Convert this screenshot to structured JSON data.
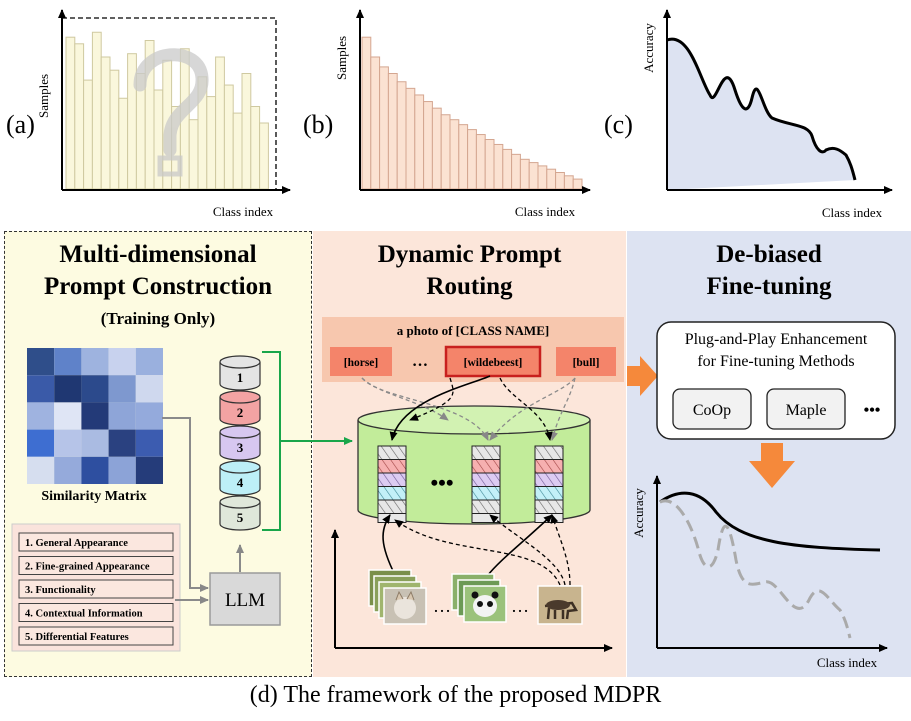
{
  "panels": {
    "a": {
      "letter": "(a)",
      "ylabel": "Samples",
      "xlabel": "Class index",
      "bars": [
        0.92,
        0.88,
        0.66,
        0.95,
        0.8,
        0.72,
        0.55,
        0.82,
        0.7,
        0.9,
        0.6,
        0.78,
        0.5,
        0.85,
        0.42,
        0.68,
        0.56,
        0.8,
        0.63,
        0.46,
        0.7,
        0.5,
        0.4
      ]
    },
    "b": {
      "letter": "(b)",
      "ylabel": "Samples",
      "xlabel": "Class index",
      "bars": [
        0.92,
        0.8,
        0.74,
        0.7,
        0.65,
        0.61,
        0.57,
        0.53,
        0.49,
        0.45,
        0.42,
        0.39,
        0.36,
        0.33,
        0.3,
        0.27,
        0.24,
        0.21,
        0.18,
        0.16,
        0.14,
        0.12,
        0.1,
        0.08,
        0.06
      ]
    },
    "c": {
      "letter": "(c)",
      "ylabel": "Accuracy",
      "xlabel": "Class index"
    }
  },
  "section1": {
    "title_line1": "Multi-dimensional",
    "title_line2": "Prompt Construction",
    "subtitle": "(Training Only)",
    "matrix_label": "Similarity Matrix",
    "matrix_colors": [
      [
        "#2f4e8a",
        "#5f82c9",
        "#9eb3df",
        "#c8d2ee",
        "#9ab0de"
      ],
      [
        "#3a5aa8",
        "#1f3772",
        "#2c4a8c",
        "#7e98cf",
        "#cfd8ee"
      ],
      [
        "#9fb3e0",
        "#dfe5f5",
        "#233a78",
        "#8ea5d8",
        "#94aadc"
      ],
      [
        "#3e6ed1",
        "#b6c4e8",
        "#aabbe2",
        "#2a4180",
        "#3c5cb0"
      ],
      [
        "#d6deef",
        "#95aadb",
        "#2e4fa0",
        "#8ca3d7",
        "#253c7a"
      ]
    ],
    "db_labels": [
      "1",
      "2",
      "3",
      "4",
      "5"
    ],
    "db_colors": [
      "#e4e4e4",
      "#f3a3a3",
      "#d7c7f0",
      "#bdeff7",
      "#dfe7da"
    ],
    "features": [
      "1. General Appearance",
      "2. Fine-grained Appearance",
      "3. Functionality",
      "4. Contextual Information",
      "5. Differential Features"
    ],
    "llm_label": "LLM"
  },
  "section2": {
    "title_line1": "Dynamic Prompt",
    "title_line2": "Routing",
    "template": "a photo of [CLASS NAME]",
    "classes": [
      "[horse]",
      "…",
      "[wildebeest]",
      "[bull]"
    ],
    "ellipsis": "•••",
    "ellipsis_images": "…"
  },
  "section3": {
    "title_line1": "De-biased",
    "title_line2": "Fine-tuning",
    "box_line1": "Plug-and-Play Enhancement",
    "box_line2": "for Fine-tuning Methods",
    "methods": [
      "CoOp",
      "Maple"
    ],
    "more": "•••",
    "ylabel": "Accuracy",
    "xlabel": "Class index"
  },
  "caption": "(d) The framework of the proposed MDPR",
  "colors": {
    "bg_section1": "#fdfbe1",
    "bg_section2": "#fce6da",
    "bg_section3": "#dde3f2",
    "bar_a_fill": "#faf7dc",
    "bar_b_fill": "#fbe2d2",
    "area_c_fill": "#dde3f2",
    "cylinder_green": "#c2ec9a",
    "arrow_orange": "#f5893b",
    "bracket_green": "#19a64a",
    "prompt_red": "#f4846a",
    "highlight_red": "#c8201e"
  }
}
